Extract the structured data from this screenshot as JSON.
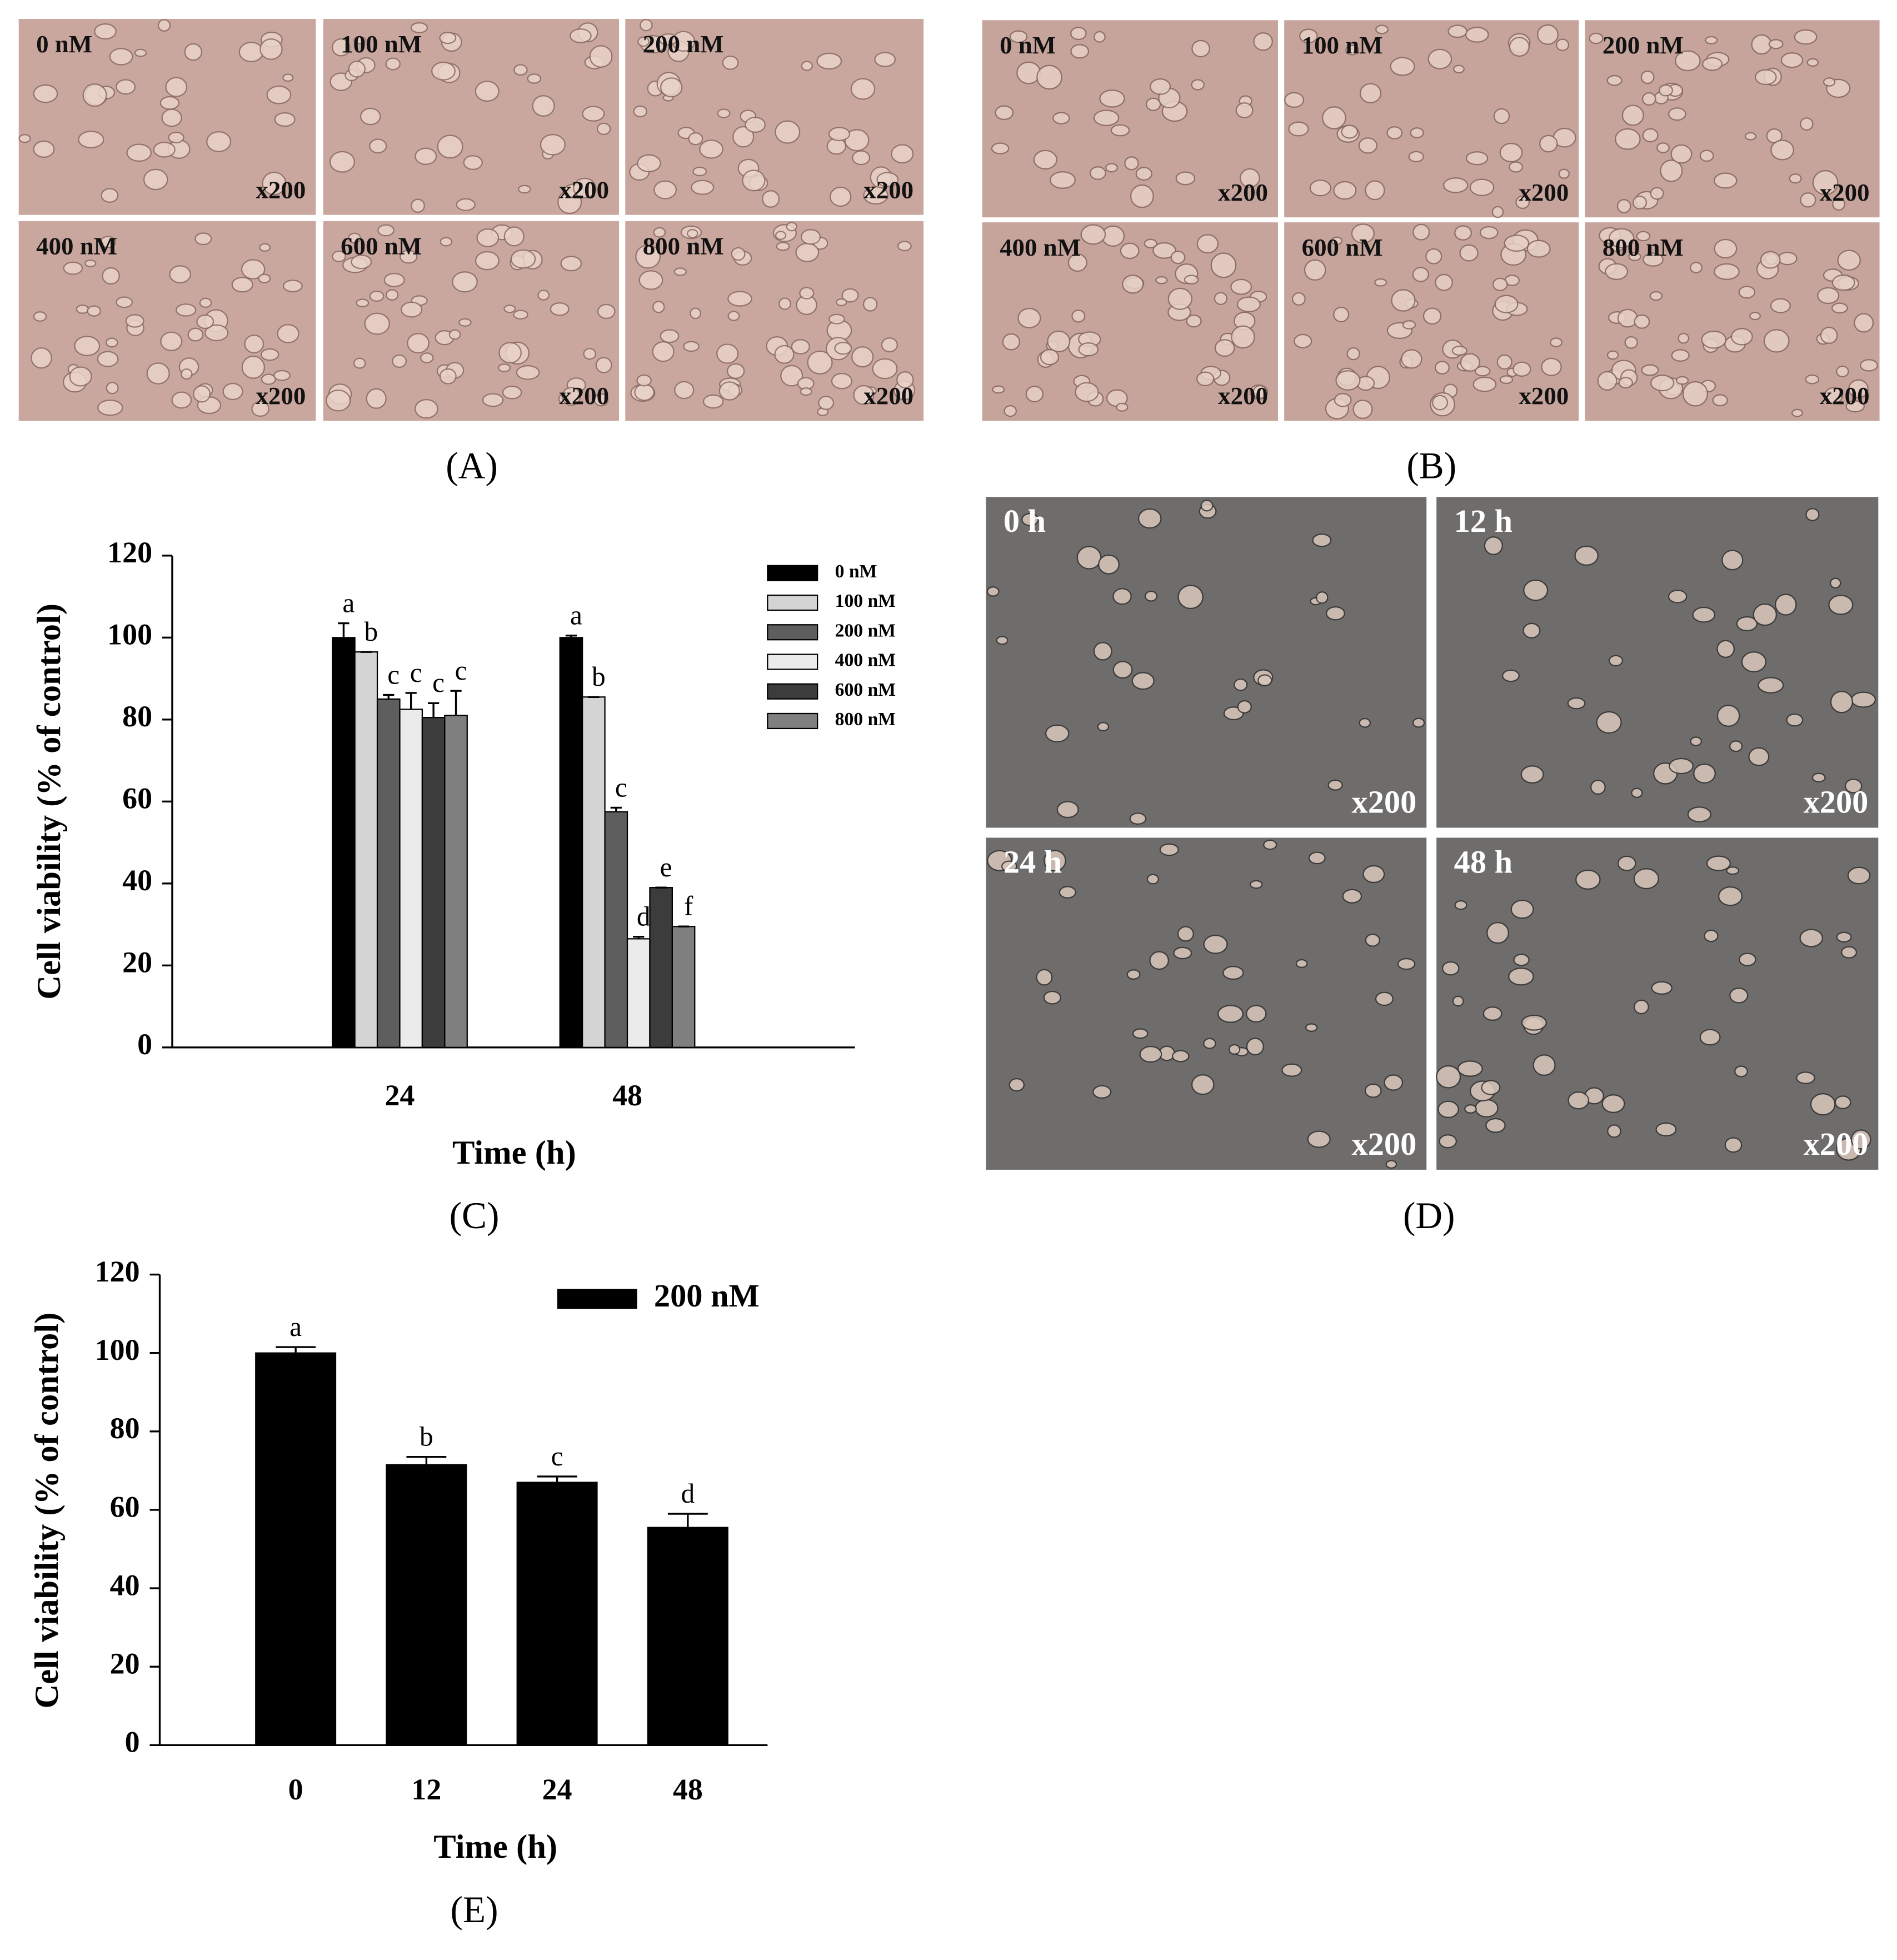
{
  "panels": [
    {
      "label": "(A)",
      "images": [
        {
          "caption": "0 nM",
          "magnification": "x200"
        },
        {
          "caption": "100 nM",
          "magnification": "x200"
        },
        {
          "caption": "200 nM",
          "magnification": "x200"
        },
        {
          "caption": "400 nM",
          "magnification": "x200"
        },
        {
          "caption": "600 nM",
          "magnification": "x200"
        },
        {
          "caption": "800 nM",
          "magnification": "x200"
        }
      ]
    },
    {
      "label": "(B)",
      "images": [
        {
          "caption": "0 nM",
          "magnification": "x200"
        },
        {
          "caption": "100 nM",
          "magnification": "x200"
        },
        {
          "caption": "200 nM",
          "magnification": "x200"
        },
        {
          "caption": "400 nM",
          "magnification": "x200"
        },
        {
          "caption": "600 nM",
          "magnification": "x200"
        },
        {
          "caption": "800 nM",
          "magnification": "x200"
        }
      ]
    },
    {
      "label": "(D)",
      "images": [
        {
          "caption": "0 h",
          "magnification": "x200"
        },
        {
          "caption": "12 h",
          "magnification": "x200"
        },
        {
          "caption": "24 h",
          "magnification": "x200"
        },
        {
          "caption": "48 h",
          "magnification": "x200"
        }
      ]
    }
  ],
  "chart_data": [
    {
      "type": "bar",
      "panel_label": "(C)",
      "x_label": "Time (h)",
      "y_label": "Cell viability (% of control)",
      "categories": [
        "24",
        "48"
      ],
      "ylim": [
        0,
        120
      ],
      "yticks": [
        0,
        20,
        40,
        60,
        80,
        100,
        120
      ],
      "legend": "upper right",
      "series": [
        {
          "name": "0 nM",
          "color": "#000000",
          "values": [
            100,
            100
          ],
          "errors": [
            3.5,
            0.5
          ],
          "letters": [
            "a",
            "a"
          ]
        },
        {
          "name": "100 nM",
          "color": "#d4d4d4",
          "values": [
            96.5,
            85.5
          ],
          "errors": [
            0,
            0
          ],
          "letters": [
            "b",
            "b"
          ]
        },
        {
          "name": "200 nM",
          "color": "#5e5e5e",
          "values": [
            85,
            57.5
          ],
          "errors": [
            1,
            1
          ],
          "letters": [
            "c",
            "c"
          ]
        },
        {
          "name": "400 nM",
          "color": "#ebebeb",
          "values": [
            82.5,
            26.5
          ],
          "errors": [
            4,
            0.5
          ],
          "letters": [
            "c",
            "d"
          ]
        },
        {
          "name": "600 nM",
          "color": "#3c3c3c",
          "values": [
            80.5,
            39
          ],
          "errors": [
            3.5,
            0
          ],
          "letters": [
            "c",
            "e"
          ]
        },
        {
          "name": "800 nM",
          "color": "#7f7f7f",
          "values": [
            81,
            29.5
          ],
          "errors": [
            6,
            0
          ],
          "letters": [
            "c",
            "f"
          ]
        }
      ]
    },
    {
      "type": "bar",
      "panel_label": "(E)",
      "x_label": "Time (h)",
      "y_label": "Cell viability (% of control)",
      "categories": [
        "0",
        "12",
        "24",
        "48"
      ],
      "ylim": [
        0,
        120
      ],
      "yticks": [
        0,
        20,
        40,
        60,
        80,
        100,
        120
      ],
      "legend": "upper right",
      "series": [
        {
          "name": "200 nM",
          "color": "#000000",
          "values": [
            100,
            71.5,
            67,
            55.5
          ],
          "errors": [
            1.5,
            2,
            1.5,
            3.5
          ],
          "letters": [
            "a",
            "b",
            "c",
            "d"
          ]
        }
      ]
    }
  ]
}
